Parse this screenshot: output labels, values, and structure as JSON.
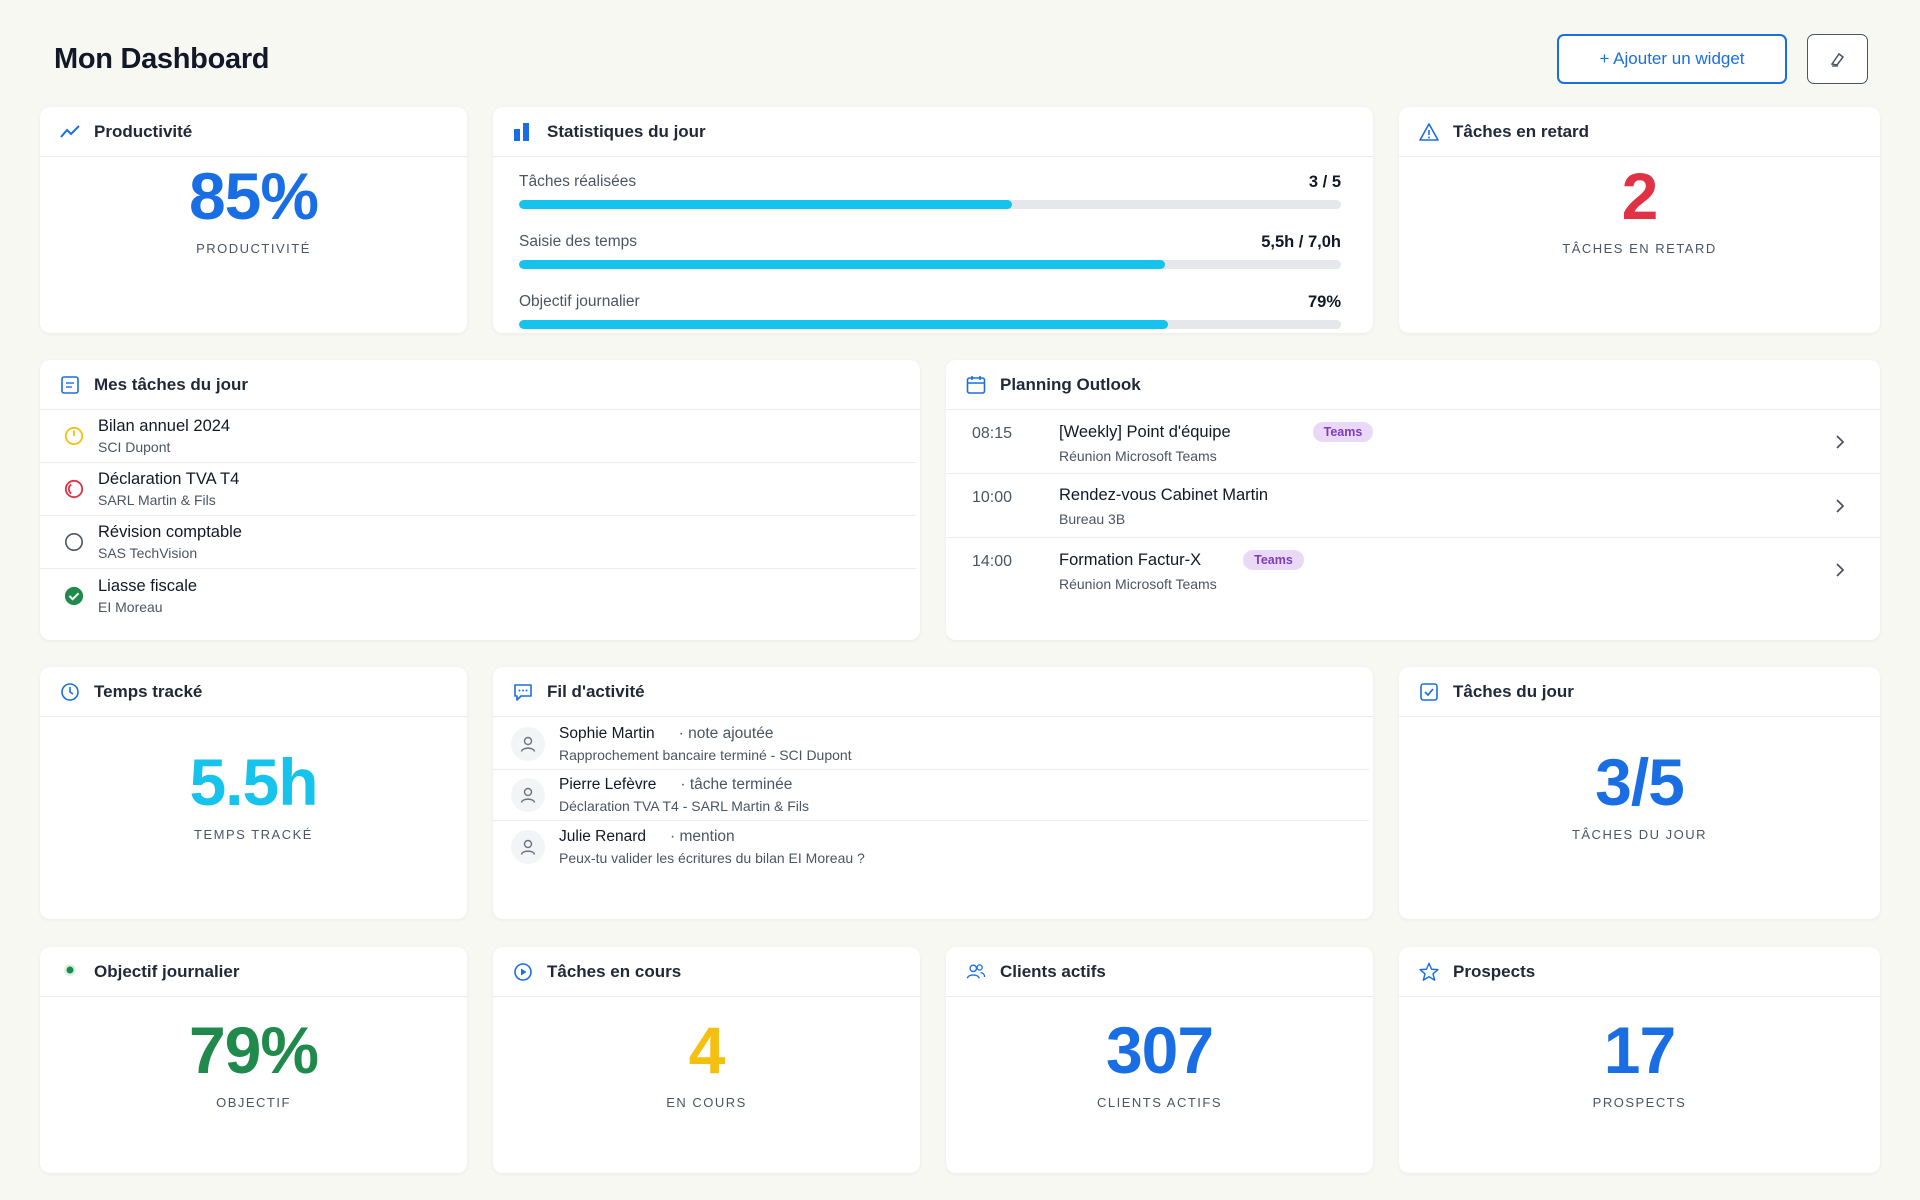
{
  "header": {
    "title": "Mon Dashboard",
    "add_widget_label": "+ Ajouter un widget"
  },
  "productivity": {
    "title": "Productivité",
    "value": "85%",
    "label": "PRODUCTIVITÉ"
  },
  "stats": {
    "title": "Statistiques du jour",
    "rows": [
      {
        "label": "Tâches réalisées",
        "value": "3 / 5",
        "progress": 0.6
      },
      {
        "label": "Saisie des temps",
        "value": "5,5h / 7,0h",
        "progress": 0.786
      },
      {
        "label": "Objectif journalier",
        "value": "79%",
        "progress": 0.79
      }
    ]
  },
  "late_tasks": {
    "title": "Tâches en retard",
    "value": "2",
    "label": "TÂCHES EN RETARD"
  },
  "my_tasks": {
    "title": "Mes tâches du jour",
    "items": [
      {
        "name": "Bilan annuel 2024",
        "client": "SCI Dupont",
        "status": "in-progress"
      },
      {
        "name": "Déclaration TVA T4",
        "client": "SARL Martin & Fils",
        "status": "late"
      },
      {
        "name": "Révision comptable",
        "client": "SAS TechVision",
        "status": "todo"
      },
      {
        "name": "Liasse fiscale",
        "client": "EI Moreau",
        "status": "done"
      }
    ]
  },
  "planning": {
    "title": "Planning Outlook",
    "items": [
      {
        "time": "08:15",
        "title": "[Weekly] Point d'équipe",
        "subtitle": "Réunion Microsoft Teams",
        "badge": "Teams"
      },
      {
        "time": "10:00",
        "title": "Rendez-vous Cabinet Martin",
        "subtitle": "Bureau 3B",
        "badge": ""
      },
      {
        "time": "14:00",
        "title": "Formation Factur-X",
        "subtitle": "Réunion Microsoft Teams",
        "badge": "Teams"
      }
    ]
  },
  "time_tracked": {
    "title": "Temps tracké",
    "value": "5.5h",
    "label": "TEMPS TRACKÉ"
  },
  "activity": {
    "title": "Fil d'activité",
    "items": [
      {
        "user": "Sophie Martin",
        "type": "· note ajoutée",
        "desc": "Rapprochement bancaire terminé - SCI Dupont"
      },
      {
        "user": "Pierre Lefèvre",
        "type": "· tâche terminée",
        "desc": "Déclaration TVA T4 - SARL Martin & Fils"
      },
      {
        "user": "Julie Renard",
        "type": "· mention",
        "desc": "Peux-tu valider les écritures du bilan EI Moreau ?"
      }
    ]
  },
  "day_tasks": {
    "title": "Tâches du jour",
    "value": "3/5",
    "label": "TÂCHES DU JOUR"
  },
  "daily_goal": {
    "title": "Objectif journalier",
    "value": "79%",
    "label": "OBJECTIF"
  },
  "in_progress": {
    "title": "Tâches en cours",
    "value": "4",
    "label": "EN COURS"
  },
  "active_clients": {
    "title": "Clients actifs",
    "value": "307",
    "label": "CLIENTS ACTIFS"
  },
  "prospects": {
    "title": "Prospects",
    "value": "17",
    "label": "PROSPECTS"
  },
  "colors": {
    "blue": "#1a6ee3",
    "cyan": "#16c3ec",
    "red": "#e03244",
    "green": "#1f8a4c",
    "yellow": "#f5bf0f",
    "purple": "#7e3db6"
  },
  "icons": {
    "productivity": "trending-up-icon",
    "stats": "bar-chart-icon",
    "late": "warning-triangle-icon",
    "tasks": "list-icon",
    "planning": "calendar-icon",
    "time": "clock-icon",
    "activity": "chat-icon",
    "day_tasks": "checkbox-icon",
    "goal": "target-dot-icon",
    "in_progress": "play-circle-icon",
    "clients": "users-icon",
    "prospects": "star-icon"
  }
}
